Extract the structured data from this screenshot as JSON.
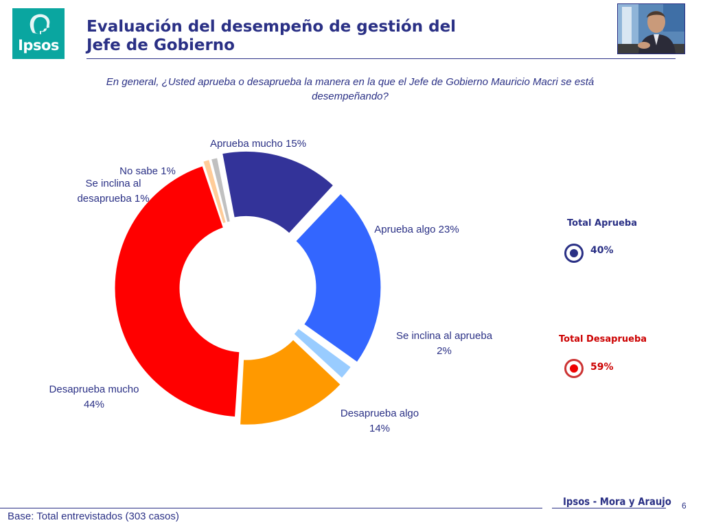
{
  "logo": {
    "text": "Ipsos"
  },
  "title": {
    "line1": "Evaluación del desempeño de gestión del",
    "line2": "Jefe de Gobierno"
  },
  "question": "En general, ¿Usted aprueba o desaprueba la manera en la que el Jefe de Gobierno Mauricio Macri se está desempeñando?",
  "chart_data": {
    "type": "pie",
    "variant": "donut",
    "slices": [
      {
        "label": "Aprueba mucho",
        "value": 15,
        "color": "#333399",
        "label_lines": [
          "Aprueba mucho 15%"
        ]
      },
      {
        "label": "Aprueba algo",
        "value": 23,
        "color": "#3366ff",
        "label_lines": [
          "Aprueba algo 23%"
        ]
      },
      {
        "label": "Se inclina al aprueba",
        "value": 2,
        "color": "#99ccff",
        "label_lines": [
          "Se inclina al aprueba",
          "2%"
        ]
      },
      {
        "label": "Desaprueba algo",
        "value": 14,
        "color": "#ff9900",
        "label_lines": [
          "Desaprueba algo",
          "14%"
        ]
      },
      {
        "label": "Desaprueba mucho",
        "value": 44,
        "color": "#ff0000",
        "label_lines": [
          "Desaprueba mucho",
          "44%"
        ]
      },
      {
        "label": "Se inclina al desaprueba",
        "value": 1,
        "color": "#ffcc99",
        "label_lines": [
          "Se inclina al",
          "desaprueba 1%"
        ]
      },
      {
        "label": "No sabe",
        "value": 1,
        "color": "#c0c0c0",
        "label_lines": [
          "No sabe 1%"
        ]
      }
    ]
  },
  "summary": {
    "approve": {
      "label": "Total Aprueba",
      "value": "40%",
      "color": "#2a3085"
    },
    "disapprove": {
      "label": "Total Desaprueba",
      "value": "59%",
      "color": "#cc0000"
    }
  },
  "footer": {
    "base": "Base: Total entrevistados (303 casos)",
    "brand": "Ipsos - Mora y Araujo",
    "page": "6"
  }
}
